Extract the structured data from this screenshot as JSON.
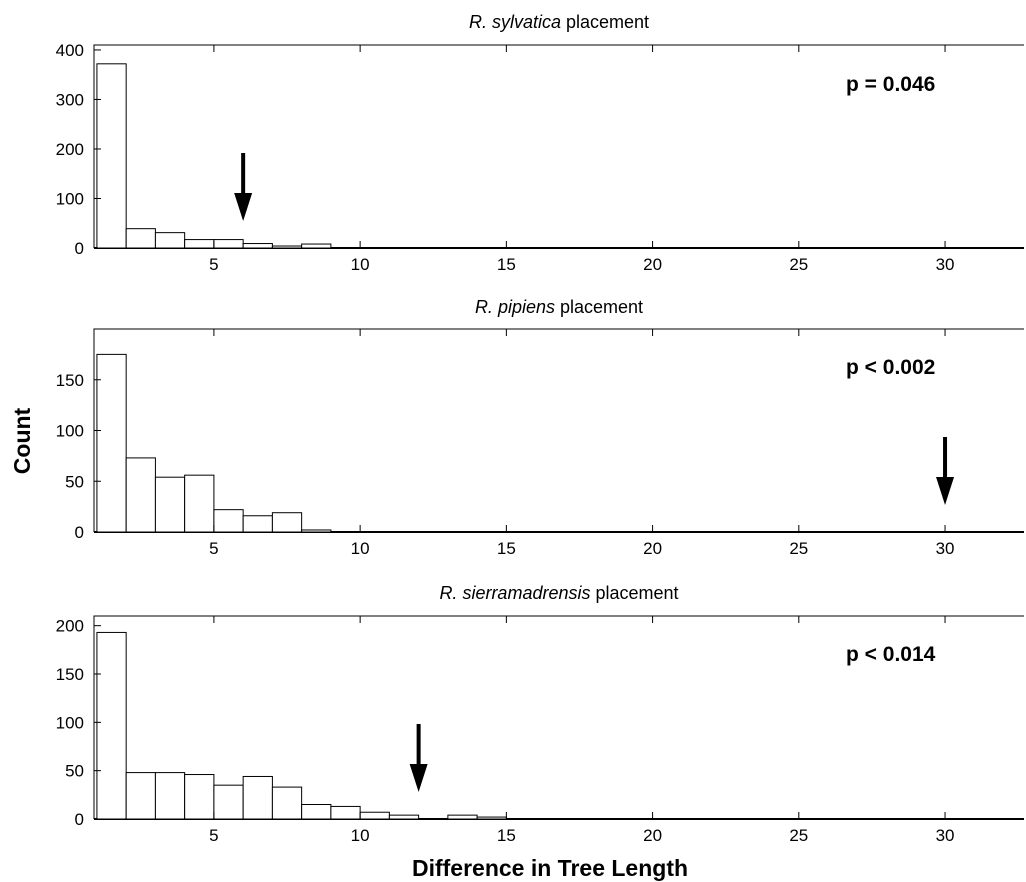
{
  "figure": {
    "ylabel": "Count",
    "xlabel": "Difference in Tree Length"
  },
  "chart_data": [
    {
      "type": "bar",
      "title_italic": "R. sylvatica",
      "title_rest": " placement",
      "annotation": "p = 0.046",
      "arrow_x": 6,
      "xlim": [
        0.9,
        32.7
      ],
      "ylim": [
        0,
        410
      ],
      "xticks": [
        5,
        10,
        15,
        20,
        25,
        30
      ],
      "yticks": [
        0,
        100,
        200,
        300,
        400
      ],
      "bin_width": 1,
      "bin_starts": [
        1,
        2,
        3,
        4,
        5,
        6,
        7,
        8
      ],
      "values": [
        372,
        39,
        31,
        17,
        17,
        9,
        4,
        8
      ]
    },
    {
      "type": "bar",
      "title_italic": "R. pipiens",
      "title_rest": " placement",
      "annotation": "p < 0.002",
      "arrow_x": 30,
      "xlim": [
        0.9,
        32.7
      ],
      "ylim": [
        0,
        200
      ],
      "xticks": [
        5,
        10,
        15,
        20,
        25,
        30
      ],
      "yticks": [
        0,
        50,
        100,
        150
      ],
      "bin_width": 1,
      "bin_starts": [
        1,
        2,
        3,
        4,
        5,
        6,
        7,
        8
      ],
      "values": [
        175,
        73,
        54,
        56,
        22,
        16,
        19,
        2
      ]
    },
    {
      "type": "bar",
      "title_italic": "R. sierramadrensis",
      "title_rest": " placement",
      "annotation": "p < 0.014",
      "arrow_x": 12,
      "xlim": [
        0.9,
        32.7
      ],
      "ylim": [
        0,
        210
      ],
      "xticks": [
        5,
        10,
        15,
        20,
        25,
        30
      ],
      "yticks": [
        0,
        50,
        100,
        150,
        200
      ],
      "bin_width": 1,
      "bin_starts": [
        1,
        2,
        3,
        4,
        5,
        6,
        7,
        8,
        9,
        10,
        11,
        12,
        13,
        14
      ],
      "values": [
        193,
        48,
        48,
        46,
        35,
        44,
        33,
        15,
        13,
        7,
        4,
        0,
        4,
        2
      ]
    }
  ]
}
